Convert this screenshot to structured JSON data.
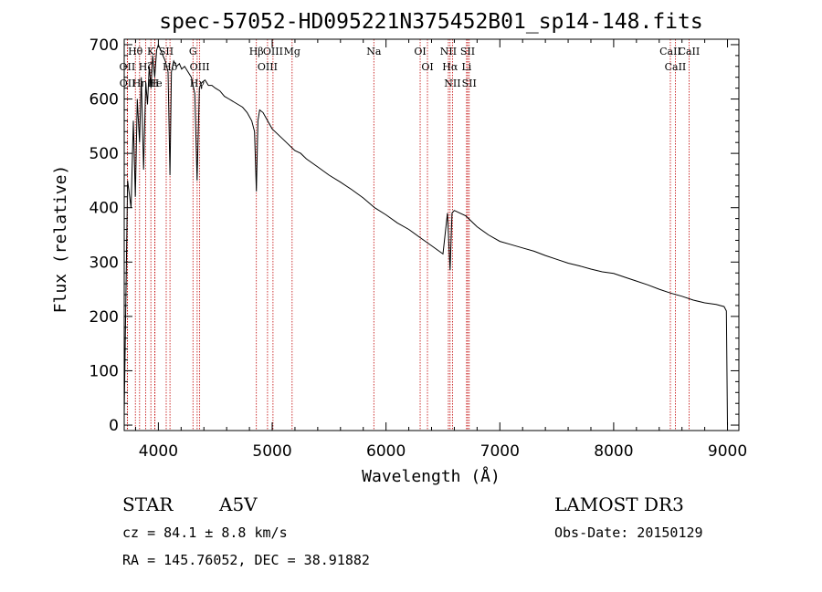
{
  "chart_data": {
    "type": "line",
    "title": "spec-57052-HD095221N375452B01_sp14-148.fits",
    "xlabel": "Wavelength (Å)",
    "ylabel": "Flux (relative)",
    "xlim": [
      3700,
      9100
    ],
    "ylim": [
      -10,
      710
    ],
    "x_ticks": [
      4000,
      5000,
      6000,
      7000,
      8000,
      9000
    ],
    "y_ticks": [
      0,
      100,
      200,
      300,
      400,
      500,
      600,
      700
    ],
    "grid": false,
    "series": [
      {
        "name": "spectrum",
        "x": [
          3700,
          3730,
          3760,
          3780,
          3798,
          3815,
          3835,
          3850,
          3870,
          3889,
          3905,
          3920,
          3935,
          3950,
          3968,
          3985,
          4000,
          4020,
          4040,
          4060,
          4085,
          4102,
          4115,
          4135,
          4160,
          4185,
          4205,
          4230,
          4260,
          4290,
          4320,
          4340,
          4360,
          4380,
          4410,
          4440,
          4470,
          4500,
          4540,
          4580,
          4620,
          4660,
          4700,
          4740,
          4780,
          4820,
          4845,
          4861,
          4875,
          4890,
          4920,
          4960,
          5000,
          5050,
          5100,
          5150,
          5200,
          5250,
          5300,
          5400,
          5500,
          5600,
          5700,
          5800,
          5900,
          6000,
          6100,
          6200,
          6300,
          6400,
          6500,
          6540,
          6563,
          6580,
          6600,
          6650,
          6700,
          6800,
          6900,
          7000,
          7100,
          7200,
          7300,
          7400,
          7500,
          7600,
          7700,
          7800,
          7900,
          8000,
          8100,
          8200,
          8300,
          8400,
          8500,
          8600,
          8700,
          8800,
          8900,
          8970,
          8990,
          9000
        ],
        "values": [
          20,
          450,
          400,
          560,
          420,
          600,
          520,
          640,
          470,
          630,
          590,
          660,
          620,
          680,
          640,
          690,
          700,
          690,
          680,
          670,
          650,
          460,
          650,
          670,
          660,
          665,
          655,
          660,
          650,
          640,
          610,
          450,
          620,
          630,
          635,
          625,
          625,
          620,
          615,
          605,
          600,
          595,
          590,
          585,
          575,
          560,
          540,
          430,
          560,
          580,
          575,
          560,
          545,
          535,
          525,
          515,
          505,
          500,
          490,
          475,
          460,
          447,
          433,
          418,
          400,
          387,
          372,
          360,
          345,
          330,
          315,
          390,
          285,
          390,
          395,
          390,
          385,
          365,
          350,
          338,
          332,
          326,
          320,
          312,
          305,
          298,
          293,
          287,
          282,
          279,
          272,
          265,
          258,
          250,
          243,
          237,
          230,
          225,
          222,
          218,
          210,
          0
        ]
      }
    ],
    "lines": [
      {
        "label": "Hθ",
        "wl": 3798
      },
      {
        "label": "OII",
        "wl": 3727
      },
      {
        "label": "OII",
        "wl": 3729
      },
      {
        "label": "Hη",
        "wl": 3835
      },
      {
        "label": "Hζ",
        "wl": 3889
      },
      {
        "label": "K",
        "wl": 3934
      },
      {
        "label": "H",
        "wl": 3968
      },
      {
        "label": "He",
        "wl": 3970
      },
      {
        "label": "SII",
        "wl": 4069
      },
      {
        "label": "Hδ",
        "wl": 4102
      },
      {
        "label": "G",
        "wl": 4304
      },
      {
        "label": "OIII",
        "wl": 4363
      },
      {
        "label": "Hγ",
        "wl": 4341
      },
      {
        "label": "Hβ",
        "wl": 4861
      },
      {
        "label": "OIII",
        "wl": 4959
      },
      {
        "label": "OIII",
        "wl": 5007
      },
      {
        "label": "Mg",
        "wl": 5175
      },
      {
        "label": "Na",
        "wl": 5893
      },
      {
        "label": "OI",
        "wl": 6300
      },
      {
        "label": "OI",
        "wl": 6364
      },
      {
        "label": "NII",
        "wl": 6548
      },
      {
        "label": "Hα",
        "wl": 6563
      },
      {
        "label": "NII",
        "wl": 6584
      },
      {
        "label": "SII",
        "wl": 6717
      },
      {
        "label": "Li",
        "wl": 6708
      },
      {
        "label": "SII",
        "wl": 6731
      },
      {
        "label": "CaII",
        "wl": 8498
      },
      {
        "label": "CaII",
        "wl": 8542
      },
      {
        "label": "CaII",
        "wl": 8662
      }
    ]
  },
  "info": {
    "object_type": "STAR",
    "subclass": "A5V",
    "survey": "LAMOST DR3",
    "cz": "cz = 84.1 ± 8.8 km/s",
    "obs_date": "Obs-Date: 20150129",
    "coords": "RA = 145.76052, DEC =  38.91882"
  },
  "colors": {
    "line": "#000000",
    "marker": "#c00000",
    "background": "#ffffff"
  }
}
